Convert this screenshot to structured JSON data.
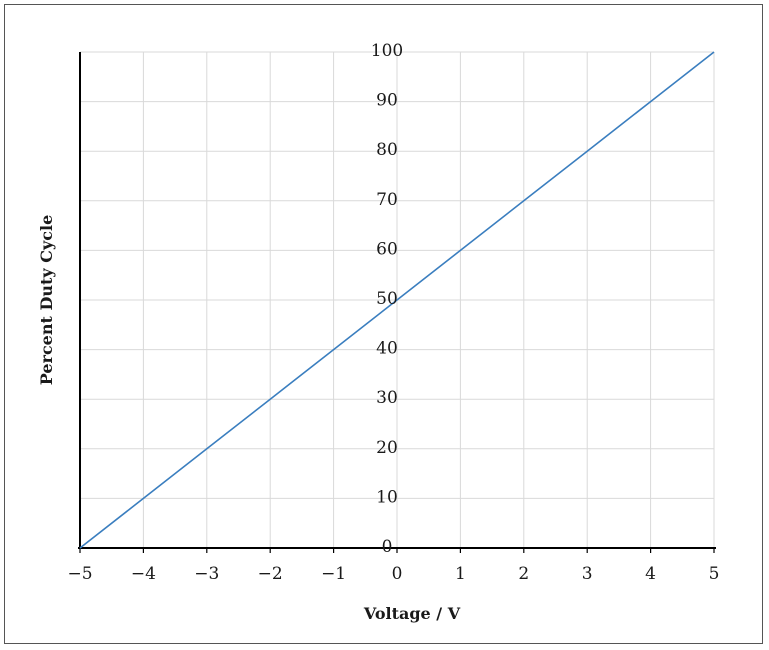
{
  "chart_data": {
    "type": "line",
    "title": "",
    "xlabel": "Voltage / V",
    "ylabel": "Percent Duty Cycle",
    "xlim": [
      -5,
      5
    ],
    "ylim": [
      0,
      100
    ],
    "x_ticks": [
      -5,
      -4,
      -3,
      -2,
      -1,
      0,
      1,
      2,
      3,
      4,
      5
    ],
    "x_tick_labels": [
      "−5",
      "−4",
      "−3",
      "−2",
      "−1",
      "0",
      "1",
      "2",
      "3",
      "4",
      "5"
    ],
    "y_ticks": [
      0,
      10,
      20,
      30,
      40,
      50,
      60,
      70,
      80,
      90,
      100
    ],
    "y_tick_labels": [
      "0",
      "10",
      "20",
      "30",
      "40",
      "50",
      "60",
      "70",
      "80",
      "90",
      "100"
    ],
    "grid": true,
    "series": [
      {
        "x": [
          -5,
          -4,
          -3,
          -2,
          -1,
          0,
          1,
          2,
          3,
          4,
          5
        ],
        "y": [
          0,
          10,
          20,
          30,
          40,
          50,
          60,
          70,
          80,
          90,
          100
        ]
      }
    ],
    "colors": {
      "line": "#3a7ebf",
      "grid": "#d9d9d9",
      "axis": "#000000"
    }
  }
}
